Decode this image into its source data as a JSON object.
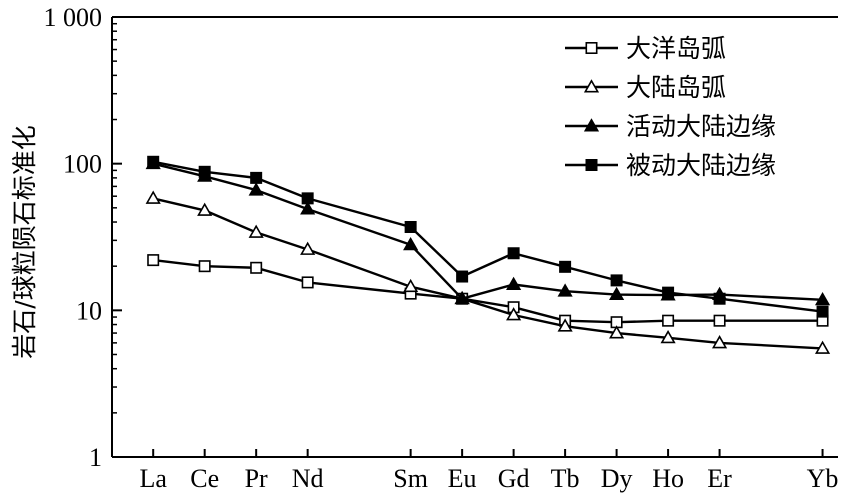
{
  "chart_data": {
    "type": "line",
    "title": "",
    "xlabel": "",
    "ylabel": "岩石/球粒陨石标准化",
    "yscale": "log",
    "ylim": [
      1,
      1000
    ],
    "yticks": [
      {
        "value": 1,
        "label": "1"
      },
      {
        "value": 10,
        "label": "10"
      },
      {
        "value": 100,
        "label": "100"
      },
      {
        "value": 1000,
        "label": "1 000"
      }
    ],
    "categories": [
      "La",
      "Ce",
      "Pr",
      "Nd",
      "Sm",
      "Eu",
      "Gd",
      "Tb",
      "Dy",
      "Ho",
      "Er",
      "Yb"
    ],
    "category_positions": [
      1,
      2,
      3,
      4,
      6,
      7,
      8,
      9,
      10,
      11,
      12,
      14
    ],
    "x_range": [
      0.2,
      14.3
    ],
    "grid": false,
    "legend_position": "top-right",
    "series": [
      {
        "name": "大洋岛弧",
        "marker": "open-square",
        "values": [
          22,
          20,
          19.5,
          15.5,
          13,
          12,
          10.5,
          8.5,
          8.3,
          8.5,
          8.5,
          8.5
        ]
      },
      {
        "name": "大陆岛弧",
        "marker": "open-triangle",
        "values": [
          58,
          48,
          34,
          26,
          14.5,
          12,
          9.3,
          7.8,
          7,
          6.5,
          6,
          5.5
        ]
      },
      {
        "name": "活动大陆边缘",
        "marker": "filled-triangle",
        "values": [
          100,
          82,
          66,
          49,
          28,
          12,
          15,
          13.5,
          12.8,
          12.7,
          12.8,
          11.8
        ]
      },
      {
        "name": "被动大陆边缘",
        "marker": "filled-square",
        "values": [
          103,
          88,
          80,
          58,
          37,
          17,
          24.5,
          19.8,
          16,
          13.2,
          12,
          9.8
        ]
      }
    ]
  }
}
